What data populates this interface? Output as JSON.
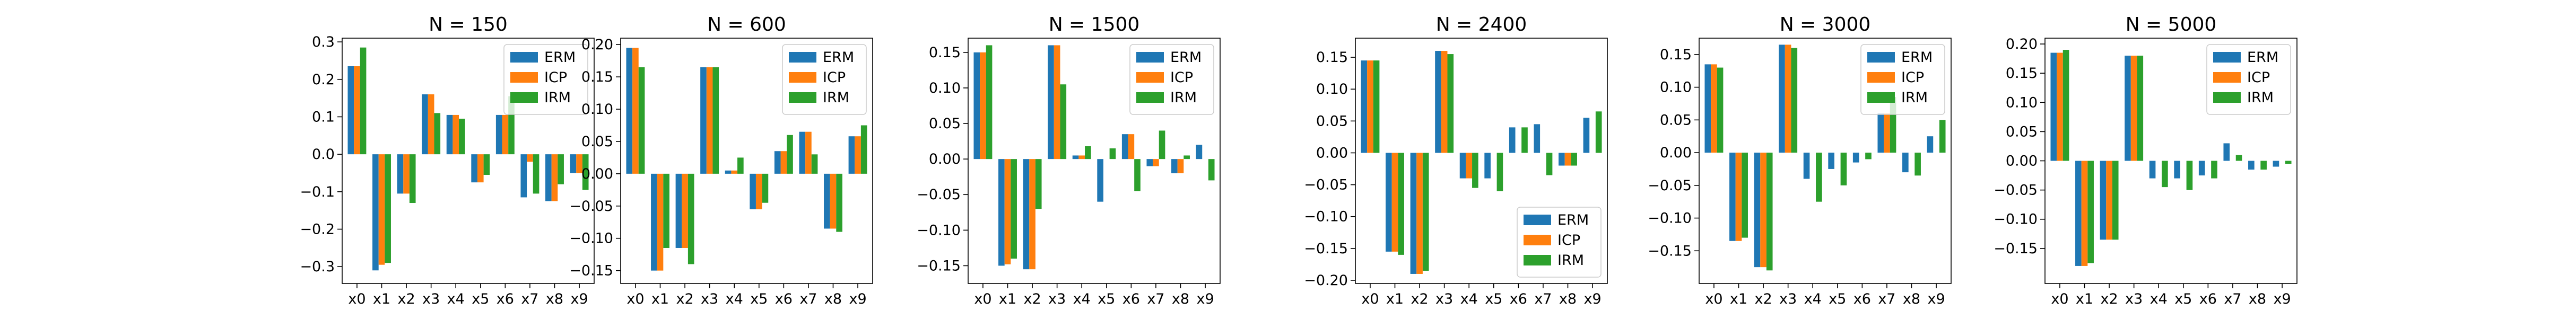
{
  "colors": {
    "ERM": "#1f77b4",
    "ICP": "#ff7f0e",
    "IRM": "#2ca02c"
  },
  "chart_data": [
    {
      "type": "bar",
      "title": "N = 150",
      "categories": [
        "x0",
        "x1",
        "x2",
        "x3",
        "x4",
        "x5",
        "x6",
        "x7",
        "x8",
        "x9"
      ],
      "ylim": [
        -0.345,
        0.31
      ],
      "yticks": [
        -0.3,
        -0.2,
        -0.1,
        0.0,
        0.1,
        0.2,
        0.3
      ],
      "yticklabels": [
        "−0.3",
        "−0.2",
        "−0.1",
        "0.0",
        "0.1",
        "0.2",
        "0.3"
      ],
      "legend": "top-right",
      "series": [
        {
          "name": "ERM",
          "values": [
            0.235,
            -0.31,
            -0.105,
            0.16,
            0.105,
            -0.075,
            0.105,
            -0.115,
            -0.125,
            -0.05
          ]
        },
        {
          "name": "ICP",
          "values": [
            0.235,
            -0.295,
            -0.105,
            0.16,
            0.105,
            -0.075,
            0.105,
            -0.02,
            -0.125,
            -0.05
          ]
        },
        {
          "name": "IRM",
          "values": [
            0.285,
            -0.29,
            -0.13,
            0.11,
            0.095,
            -0.055,
            0.155,
            -0.105,
            -0.08,
            -0.095
          ]
        }
      ]
    },
    {
      "type": "bar",
      "title": "N = 600",
      "categories": [
        "x0",
        "x1",
        "x2",
        "x3",
        "x4",
        "x5",
        "x6",
        "x7",
        "x8",
        "x9"
      ],
      "ylim": [
        -0.17,
        0.21
      ],
      "yticks": [
        -0.15,
        -0.1,
        -0.05,
        0.0,
        0.05,
        0.1,
        0.15,
        0.2
      ],
      "yticklabels": [
        "−0.15",
        "−0.10",
        "−0.05",
        "0.00",
        "0.05",
        "0.10",
        "0.15",
        "0.20"
      ],
      "legend": "top-right",
      "series": [
        {
          "name": "ERM",
          "values": [
            0.195,
            -0.15,
            -0.115,
            0.165,
            0.005,
            -0.055,
            0.035,
            0.065,
            -0.085,
            0.058
          ]
        },
        {
          "name": "ICP",
          "values": [
            0.195,
            -0.15,
            -0.115,
            0.165,
            0.005,
            -0.055,
            0.035,
            0.065,
            -0.085,
            0.058
          ]
        },
        {
          "name": "IRM",
          "values": [
            0.165,
            -0.115,
            -0.14,
            0.165,
            0.025,
            -0.045,
            0.06,
            0.03,
            -0.09,
            0.075
          ]
        }
      ]
    },
    {
      "type": "bar",
      "title": "N = 1500",
      "categories": [
        "x0",
        "x1",
        "x2",
        "x3",
        "x4",
        "x5",
        "x6",
        "x7",
        "x8",
        "x9"
      ],
      "ylim": [
        -0.175,
        0.17
      ],
      "yticks": [
        -0.15,
        -0.1,
        -0.05,
        0.0,
        0.05,
        0.1,
        0.15
      ],
      "yticklabels": [
        "−0.15",
        "−0.10",
        "−0.05",
        "0.00",
        "0.05",
        "0.10",
        "0.15"
      ],
      "legend": "top-right",
      "series": [
        {
          "name": "ERM",
          "values": [
            0.15,
            -0.15,
            -0.155,
            0.16,
            0.005,
            -0.06,
            0.035,
            -0.01,
            -0.02,
            0.02
          ]
        },
        {
          "name": "ICP",
          "values": [
            0.15,
            -0.148,
            -0.155,
            0.16,
            0.005,
            0.0,
            0.035,
            -0.01,
            -0.02,
            0.0
          ]
        },
        {
          "name": "IRM",
          "values": [
            0.16,
            -0.14,
            -0.07,
            0.105,
            0.018,
            0.015,
            -0.045,
            0.04,
            0.005,
            -0.03
          ]
        }
      ]
    },
    {
      "type": "bar",
      "title": "N = 2400",
      "categories": [
        "x0",
        "x1",
        "x2",
        "x3",
        "x4",
        "x5",
        "x6",
        "x7",
        "x8",
        "x9"
      ],
      "ylim": [
        -0.205,
        0.18
      ],
      "yticks": [
        -0.2,
        -0.15,
        -0.1,
        -0.05,
        0.0,
        0.05,
        0.1,
        0.15
      ],
      "yticklabels": [
        "−0.20",
        "−0.15",
        "−0.10",
        "−0.05",
        "0.00",
        "0.05",
        "0.10",
        "0.15"
      ],
      "legend": "lower-right",
      "series": [
        {
          "name": "ERM",
          "values": [
            0.145,
            -0.155,
            -0.19,
            0.16,
            -0.04,
            -0.04,
            0.04,
            0.045,
            -0.02,
            0.055
          ]
        },
        {
          "name": "ICP",
          "values": [
            0.145,
            -0.155,
            -0.19,
            0.16,
            -0.04,
            0.0,
            0.0,
            0.0,
            -0.02,
            0.0
          ]
        },
        {
          "name": "IRM",
          "values": [
            0.145,
            -0.16,
            -0.185,
            0.155,
            -0.055,
            -0.06,
            0.04,
            -0.035,
            -0.02,
            0.065
          ]
        }
      ]
    },
    {
      "type": "bar",
      "title": "N = 3000",
      "categories": [
        "x0",
        "x1",
        "x2",
        "x3",
        "x4",
        "x5",
        "x6",
        "x7",
        "x8",
        "x9"
      ],
      "ylim": [
        -0.2,
        0.175
      ],
      "yticks": [
        -0.15,
        -0.1,
        -0.05,
        0.0,
        0.05,
        0.1,
        0.15
      ],
      "yticklabels": [
        "−0.15",
        "−0.10",
        "−0.05",
        "0.00",
        "0.05",
        "0.10",
        "0.15"
      ],
      "legend": "top-right",
      "series": [
        {
          "name": "ERM",
          "values": [
            0.135,
            -0.135,
            -0.175,
            0.165,
            -0.04,
            -0.025,
            -0.015,
            0.06,
            -0.03,
            0.025
          ]
        },
        {
          "name": "ICP",
          "values": [
            0.135,
            -0.135,
            -0.175,
            0.165,
            0.0,
            0.0,
            0.0,
            0.06,
            0.0,
            0.0
          ]
        },
        {
          "name": "IRM",
          "values": [
            0.13,
            -0.13,
            -0.18,
            0.16,
            -0.075,
            -0.05,
            -0.01,
            0.085,
            -0.035,
            0.05
          ]
        }
      ]
    },
    {
      "type": "bar",
      "title": "N = 5000",
      "categories": [
        "x0",
        "x1",
        "x2",
        "x3",
        "x4",
        "x5",
        "x6",
        "x7",
        "x8",
        "x9"
      ],
      "ylim": [
        -0.21,
        0.21
      ],
      "yticks": [
        -0.15,
        -0.1,
        -0.05,
        0.0,
        0.05,
        0.1,
        0.15,
        0.2
      ],
      "yticklabels": [
        "−0.15",
        "−0.10",
        "−0.05",
        "0.00",
        "0.05",
        "0.10",
        "0.15",
        "0.20"
      ],
      "legend": "top-right",
      "series": [
        {
          "name": "ERM",
          "values": [
            0.185,
            -0.18,
            -0.135,
            0.18,
            -0.03,
            -0.03,
            -0.025,
            0.03,
            -0.015,
            -0.01
          ]
        },
        {
          "name": "ICP",
          "values": [
            0.185,
            -0.18,
            -0.135,
            0.18,
            0.0,
            0.0,
            0.0,
            0.0,
            0.0,
            0.0
          ]
        },
        {
          "name": "IRM",
          "values": [
            0.19,
            -0.175,
            -0.135,
            0.18,
            -0.045,
            -0.05,
            -0.03,
            0.01,
            -0.015,
            -0.005
          ]
        }
      ]
    }
  ]
}
